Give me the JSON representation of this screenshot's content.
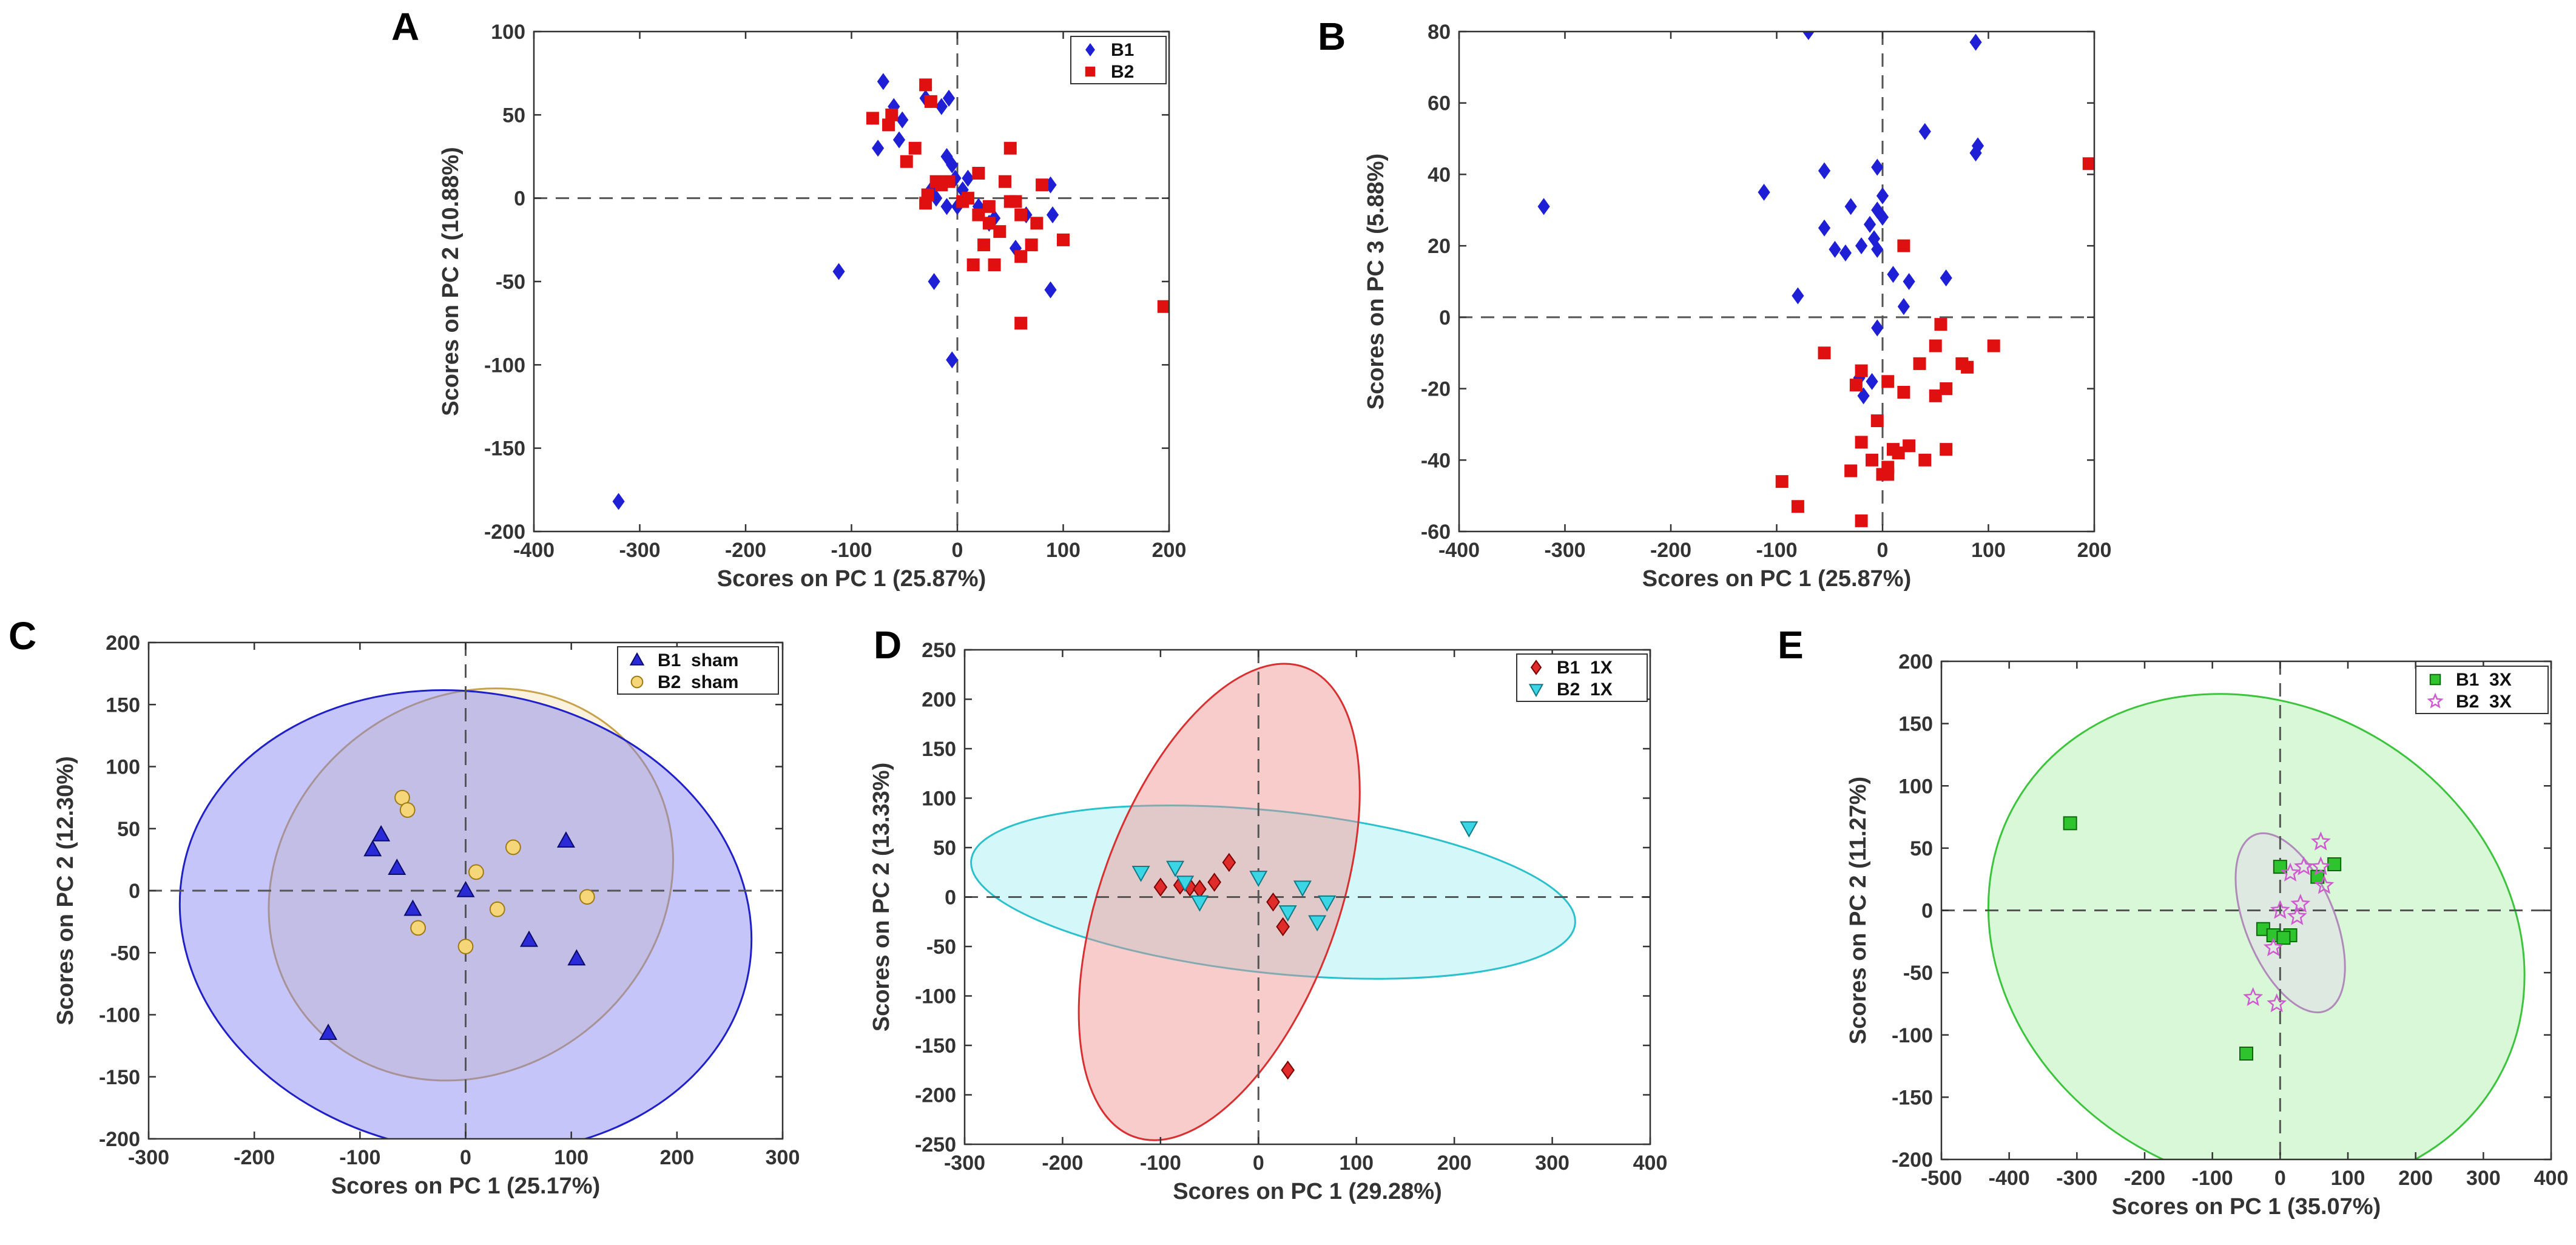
{
  "chart_data": [
    {
      "panel": "A",
      "type": "scatter",
      "xlabel": "Scores on PC 1 (25.87%)",
      "ylabel": "Scores on PC 2 (10.88%)",
      "xlim": [
        -400,
        200
      ],
      "ylim": [
        -200,
        100
      ],
      "xticks": [
        -400,
        -300,
        -200,
        -100,
        0,
        100,
        200
      ],
      "yticks": [
        -200,
        -150,
        -100,
        -50,
        0,
        50,
        100
      ],
      "legend_position": "top-right",
      "series": [
        {
          "name": "B1",
          "marker": "diamond",
          "color": "#1f1fd6",
          "points": [
            [
              -320,
              -182
            ],
            [
              -112,
              -44
            ],
            [
              -70,
              70
            ],
            [
              -75,
              30
            ],
            [
              -55,
              35
            ],
            [
              -60,
              55
            ],
            [
              -52,
              47
            ],
            [
              -30,
              60
            ],
            [
              -15,
              55
            ],
            [
              -8,
              60
            ],
            [
              -25,
              5
            ],
            [
              -20,
              0
            ],
            [
              -22,
              -50
            ],
            [
              -5,
              -97
            ],
            [
              -10,
              25
            ],
            [
              -5,
              20
            ],
            [
              -2,
              12
            ],
            [
              5,
              5
            ],
            [
              0,
              -5
            ],
            [
              20,
              -5
            ],
            [
              30,
              -15
            ],
            [
              35,
              -12
            ],
            [
              55,
              -30
            ],
            [
              65,
              -10
            ],
            [
              90,
              -10
            ],
            [
              88,
              -55
            ],
            [
              88,
              8
            ],
            [
              10,
              12
            ],
            [
              -10,
              -5
            ]
          ]
        },
        {
          "name": "B2",
          "marker": "square",
          "color": "#e01010",
          "points": [
            [
              -80,
              48
            ],
            [
              -62,
              50
            ],
            [
              -65,
              44
            ],
            [
              -48,
              22
            ],
            [
              -40,
              30
            ],
            [
              -30,
              68
            ],
            [
              -25,
              58
            ],
            [
              -20,
              10
            ],
            [
              -28,
              2
            ],
            [
              -30,
              -3
            ],
            [
              -15,
              8
            ],
            [
              -8,
              10
            ],
            [
              5,
              -2
            ],
            [
              10,
              0
            ],
            [
              15,
              -40
            ],
            [
              25,
              -28
            ],
            [
              20,
              15
            ],
            [
              30,
              -5
            ],
            [
              35,
              -40
            ],
            [
              45,
              10
            ],
            [
              50,
              -2
            ],
            [
              55,
              -2
            ],
            [
              50,
              30
            ],
            [
              60,
              -10
            ],
            [
              60,
              -35
            ],
            [
              60,
              -75
            ],
            [
              70,
              -28
            ],
            [
              75,
              -15
            ],
            [
              80,
              8
            ],
            [
              100,
              -25
            ],
            [
              195,
              -65
            ],
            [
              20,
              -10
            ],
            [
              40,
              -20
            ],
            [
              30,
              -15
            ]
          ]
        }
      ]
    },
    {
      "panel": "B",
      "type": "scatter",
      "xlabel": "Scores on PC 1 (25.87%)",
      "ylabel": "Scores on PC 3 (5.88%)",
      "xlim": [
        -400,
        200
      ],
      "ylim": [
        -60,
        80
      ],
      "xticks": [
        -400,
        -300,
        -200,
        -100,
        0,
        100,
        200
      ],
      "yticks": [
        -60,
        -40,
        -20,
        0,
        20,
        40,
        60,
        80
      ],
      "series": [
        {
          "name": "B1",
          "marker": "diamond",
          "color": "#1f1fd6",
          "points": [
            [
              -70,
              80
            ],
            [
              88,
              77
            ],
            [
              90,
              48
            ],
            [
              88,
              46
            ],
            [
              -320,
              31
            ],
            [
              -112,
              35
            ],
            [
              60,
              11
            ],
            [
              -55,
              41
            ],
            [
              -5,
              42
            ],
            [
              -55,
              25
            ],
            [
              -45,
              19
            ],
            [
              -30,
              31
            ],
            [
              -35,
              18
            ],
            [
              -20,
              20
            ],
            [
              -12,
              26
            ],
            [
              -8,
              22
            ],
            [
              -5,
              30
            ],
            [
              0,
              34
            ],
            [
              0,
              28
            ],
            [
              -5,
              19
            ],
            [
              10,
              12
            ],
            [
              25,
              10
            ],
            [
              20,
              3
            ],
            [
              -80,
              6
            ],
            [
              -5,
              -3
            ],
            [
              40,
              52
            ],
            [
              -22,
              -17
            ],
            [
              -18,
              -22
            ],
            [
              -10,
              -18
            ]
          ]
        },
        {
          "name": "B2",
          "marker": "square",
          "color": "#e01010",
          "points": [
            [
              195,
              43
            ],
            [
              20,
              20
            ],
            [
              -55,
              -10
            ],
            [
              -20,
              -15
            ],
            [
              -25,
              -19
            ],
            [
              5,
              -18
            ],
            [
              20,
              -21
            ],
            [
              50,
              -8
            ],
            [
              55,
              -2
            ],
            [
              60,
              -20
            ],
            [
              75,
              -13
            ],
            [
              80,
              -14
            ],
            [
              105,
              -8
            ],
            [
              50,
              -22
            ],
            [
              -5,
              -29
            ],
            [
              -20,
              -35
            ],
            [
              -10,
              -40
            ],
            [
              10,
              -37
            ],
            [
              15,
              -38
            ],
            [
              25,
              -36
            ],
            [
              5,
              -42
            ],
            [
              5,
              -44
            ],
            [
              0,
              -44
            ],
            [
              40,
              -40
            ],
            [
              60,
              -37
            ],
            [
              -95,
              -46
            ],
            [
              -80,
              -53
            ],
            [
              -30,
              -43
            ],
            [
              -20,
              -57
            ],
            [
              35,
              -13
            ]
          ]
        }
      ]
    },
    {
      "panel": "C",
      "type": "scatter",
      "xlabel": "Scores on PC 1 (25.17%)",
      "ylabel": "Scores on PC 2 (12.30%)",
      "xlim": [
        -300,
        300
      ],
      "ylim": [
        -200,
        200
      ],
      "xticks": [
        -300,
        -200,
        -100,
        0,
        100,
        200,
        300
      ],
      "yticks": [
        -200,
        -150,
        -100,
        -50,
        0,
        50,
        100,
        150,
        200
      ],
      "legend_position": "top-right",
      "series": [
        {
          "name": "B1 sham",
          "marker": "triangle-up",
          "color": "#2a2ad8",
          "points": [
            [
              -130,
              -115
            ],
            [
              -88,
              33
            ],
            [
              -80,
              45
            ],
            [
              -65,
              18
            ],
            [
              -50,
              -15
            ],
            [
              0,
              0
            ],
            [
              95,
              40
            ],
            [
              105,
              -55
            ],
            [
              60,
              -40
            ]
          ]
        },
        {
          "name": "B2 sham",
          "marker": "circle",
          "color": "#f5d77a",
          "points": [
            [
              -60,
              75
            ],
            [
              -55,
              65
            ],
            [
              -45,
              -30
            ],
            [
              10,
              15
            ],
            [
              30,
              -15
            ],
            [
              45,
              35
            ],
            [
              115,
              -5
            ],
            [
              0,
              -45
            ]
          ]
        }
      ],
      "ellipses": [
        {
          "group": "B2 sham",
          "cx": 5,
          "cy": 5,
          "rx": 200,
          "ry": 150,
          "rotation_deg": 38,
          "fill": "#f3e2b4",
          "stroke": "#c8a24a"
        },
        {
          "group": "B1 sham",
          "cx": 0,
          "cy": -25,
          "rx": 272,
          "ry": 185,
          "rotation_deg": -10,
          "fill": "#7f7ff2",
          "stroke": "#2020c8"
        }
      ]
    },
    {
      "panel": "D",
      "type": "scatter",
      "xlabel": "Scores on PC 1 (29.28%)",
      "ylabel": "Scores on PC 2 (13.33%)",
      "xlim": [
        -300,
        400
      ],
      "ylim": [
        -250,
        250
      ],
      "xticks": [
        -300,
        -200,
        -100,
        0,
        100,
        200,
        300,
        400
      ],
      "yticks": [
        -250,
        -200,
        -150,
        -100,
        -50,
        0,
        50,
        100,
        150,
        200,
        250
      ],
      "legend_position": "top-right",
      "series": [
        {
          "name": "B1 1X",
          "marker": "diamond",
          "color": "#e02b2b",
          "points": [
            [
              -100,
              10
            ],
            [
              -80,
              12
            ],
            [
              -70,
              10
            ],
            [
              -60,
              8
            ],
            [
              -45,
              15
            ],
            [
              -30,
              35
            ],
            [
              15,
              -5
            ],
            [
              25,
              -30
            ],
            [
              30,
              -175
            ]
          ]
        },
        {
          "name": "B2 1X",
          "marker": "triangle-down",
          "color": "#3ad6e6",
          "points": [
            [
              -120,
              25
            ],
            [
              -85,
              30
            ],
            [
              -60,
              -5
            ],
            [
              -75,
              15
            ],
            [
              0,
              20
            ],
            [
              30,
              -15
            ],
            [
              45,
              10
            ],
            [
              70,
              -5
            ],
            [
              60,
              -25
            ],
            [
              215,
              70
            ]
          ]
        }
      ],
      "ellipses": [
        {
          "group": "B2 1X",
          "cx": 15,
          "cy": 5,
          "rx": 310,
          "ry": 82,
          "rotation_deg": -6,
          "fill": "#9ff0f5",
          "stroke": "#2bc0cc"
        },
        {
          "group": "B1 1X",
          "cx": -40,
          "cy": -5,
          "rx": 255,
          "ry": 120,
          "rotation_deg": 70,
          "fill": "#f28f8f",
          "stroke": "#d83030"
        }
      ]
    },
    {
      "panel": "E",
      "type": "scatter",
      "xlabel": "Scores on PC 1 (35.07%)",
      "ylabel": "Scores on PC 2 (11.27%)",
      "xlim": [
        -500,
        400
      ],
      "ylim": [
        -200,
        200
      ],
      "xticks": [
        -500,
        -400,
        -300,
        -200,
        -100,
        0,
        100,
        200,
        300,
        400
      ],
      "yticks": [
        -200,
        -150,
        -100,
        -50,
        0,
        50,
        100,
        150,
        200
      ],
      "legend_position": "top-right",
      "series": [
        {
          "name": "B1 3X",
          "marker": "square",
          "color": "#2ec42e",
          "points": [
            [
              -310,
              70
            ],
            [
              -50,
              -115
            ],
            [
              -25,
              -15
            ],
            [
              -10,
              -20
            ],
            [
              0,
              35
            ],
            [
              15,
              -20
            ],
            [
              55,
              27
            ],
            [
              80,
              37
            ],
            [
              5,
              -22
            ]
          ]
        },
        {
          "name": "B2 3X",
          "marker": "star",
          "color": "#d05ad0",
          "points": [
            [
              -40,
              -70
            ],
            [
              -5,
              -75
            ],
            [
              -10,
              -30
            ],
            [
              0,
              0
            ],
            [
              15,
              30
            ],
            [
              30,
              5
            ],
            [
              25,
              -5
            ],
            [
              60,
              55
            ],
            [
              60,
              35
            ],
            [
              65,
              20
            ],
            [
              35,
              35
            ]
          ]
        }
      ],
      "ellipses": [
        {
          "group": "B1 3X",
          "cx": -35,
          "cy": -25,
          "rx": 410,
          "ry": 190,
          "rotation_deg": -30,
          "fill": "#a8f0a8",
          "stroke": "#3cc43c"
        },
        {
          "group": "B2 3X",
          "cx": 15,
          "cy": -10,
          "rx": 140,
          "ry": 36,
          "rotation_deg": -68,
          "fill": "#e6d7ee",
          "stroke": "#b08ab8"
        }
      ]
    }
  ]
}
